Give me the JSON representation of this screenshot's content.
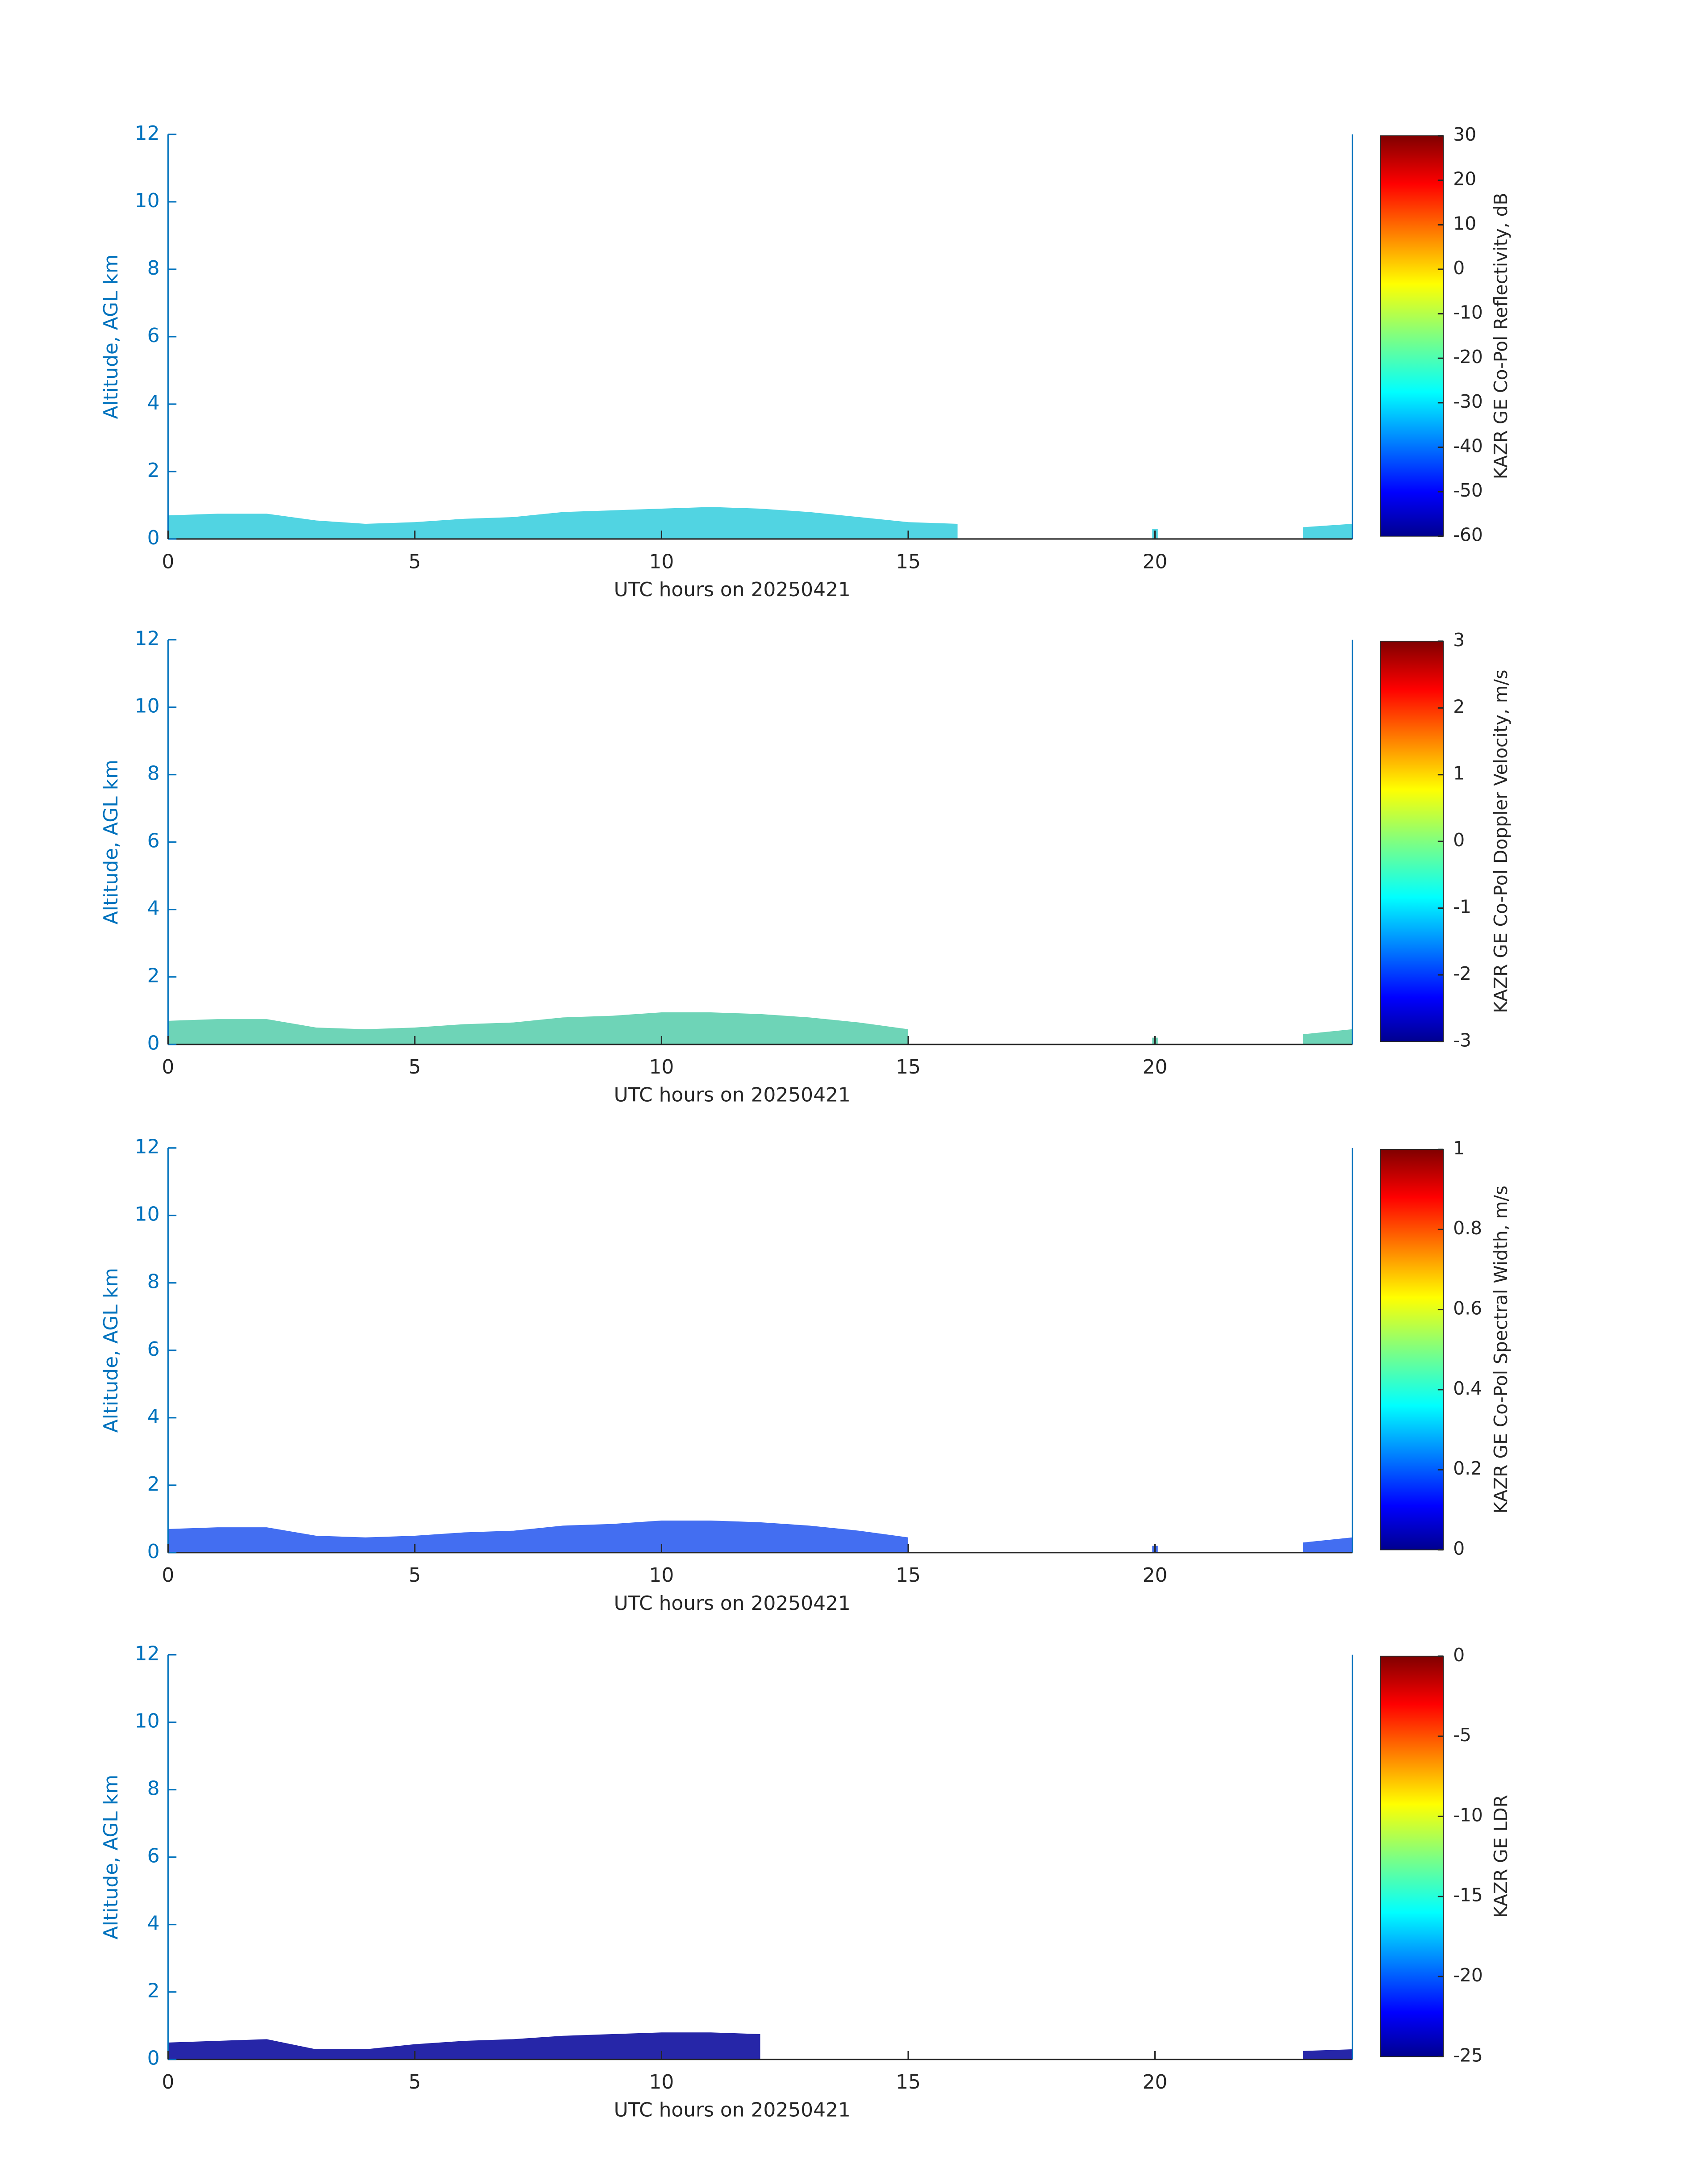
{
  "chart_data": [
    {
      "type": "heatmap",
      "xlabel": "UTC hours on 20250421",
      "ylabel": "Altitude, AGL km",
      "clabel": "KAZR GE Co-Pol Reflectivity, dB",
      "xlim": [
        0,
        24
      ],
      "xticks": [
        0,
        5,
        10,
        15,
        20
      ],
      "ylim": [
        0,
        12
      ],
      "yticks": [
        0,
        2,
        4,
        6,
        8,
        10,
        12
      ],
      "clim": [
        -60,
        30
      ],
      "cticks": [
        -60,
        -50,
        -40,
        -30,
        -20,
        -10,
        0,
        10,
        20,
        30
      ],
      "colormap": "jet",
      "x": [
        0,
        1,
        2,
        3,
        4,
        5,
        6,
        7,
        8,
        9,
        10,
        11,
        12,
        13,
        14,
        15,
        16,
        17,
        18,
        19,
        20,
        21,
        22,
        23,
        24
      ],
      "values": [
        0.7,
        0.75,
        0.75,
        0.55,
        0.45,
        0.5,
        0.6,
        0.65,
        0.8,
        0.85,
        0.9,
        0.95,
        0.9,
        0.8,
        0.65,
        0.5,
        0.45,
        null,
        null,
        null,
        0.3,
        null,
        null,
        0.35,
        0.45
      ],
      "color": "#33ccdd"
    },
    {
      "type": "heatmap",
      "xlabel": "UTC hours on 20250421",
      "ylabel": "Altitude, AGL km",
      "clabel": "KAZR GE Co-Pol Doppler Velocity, m/s",
      "xlim": [
        0,
        24
      ],
      "xticks": [
        0,
        5,
        10,
        15,
        20
      ],
      "ylim": [
        0,
        12
      ],
      "yticks": [
        0,
        2,
        4,
        6,
        8,
        10,
        12
      ],
      "clim": [
        -3,
        3
      ],
      "cticks": [
        -3,
        -2,
        -1,
        0,
        1,
        2,
        3
      ],
      "colormap": "jet",
      "x": [
        0,
        1,
        2,
        3,
        4,
        5,
        6,
        7,
        8,
        9,
        10,
        11,
        12,
        13,
        14,
        15,
        16,
        17,
        18,
        19,
        20,
        21,
        22,
        23,
        24
      ],
      "values": [
        0.7,
        0.75,
        0.75,
        0.5,
        0.45,
        0.5,
        0.6,
        0.65,
        0.8,
        0.85,
        0.95,
        0.95,
        0.9,
        0.8,
        0.65,
        0.45,
        null,
        null,
        null,
        null,
        0.2,
        null,
        null,
        0.3,
        0.45
      ],
      "color": "#55ccaa"
    },
    {
      "type": "heatmap",
      "xlabel": "UTC hours on 20250421",
      "ylabel": "Altitude, AGL km",
      "clabel": "KAZR GE Co-Pol Spectral Width, m/s",
      "xlim": [
        0,
        24
      ],
      "xticks": [
        0,
        5,
        10,
        15,
        20
      ],
      "ylim": [
        0,
        12
      ],
      "yticks": [
        0,
        2,
        4,
        6,
        8,
        10,
        12
      ],
      "clim": [
        0,
        1
      ],
      "cticks": [
        0,
        0.2,
        0.4,
        0.6,
        0.8,
        1
      ],
      "colormap": "jet",
      "x": [
        0,
        1,
        2,
        3,
        4,
        5,
        6,
        7,
        8,
        9,
        10,
        11,
        12,
        13,
        14,
        15,
        16,
        17,
        18,
        19,
        20,
        21,
        22,
        23,
        24
      ],
      "values": [
        0.7,
        0.75,
        0.75,
        0.5,
        0.45,
        0.5,
        0.6,
        0.65,
        0.8,
        0.85,
        0.95,
        0.95,
        0.9,
        0.8,
        0.65,
        0.45,
        null,
        null,
        null,
        null,
        0.2,
        null,
        null,
        0.3,
        0.45
      ],
      "color": "#2255ee"
    },
    {
      "type": "heatmap",
      "xlabel": "UTC hours on 20250421",
      "ylabel": "Altitude, AGL km",
      "clabel": "KAZR GE LDR",
      "xlim": [
        0,
        24
      ],
      "xticks": [
        0,
        5,
        10,
        15,
        20
      ],
      "ylim": [
        0,
        12
      ],
      "yticks": [
        0,
        2,
        4,
        6,
        8,
        10,
        12
      ],
      "clim": [
        -25,
        0
      ],
      "cticks": [
        -25,
        -20,
        -15,
        -10,
        -5,
        0
      ],
      "colormap": "jet",
      "x": [
        0,
        1,
        2,
        3,
        4,
        5,
        6,
        7,
        8,
        9,
        10,
        11,
        12,
        13,
        14,
        15,
        16,
        17,
        18,
        19,
        20,
        21,
        22,
        23,
        24
      ],
      "values": [
        0.5,
        0.55,
        0.6,
        0.3,
        0.3,
        0.45,
        0.55,
        0.6,
        0.7,
        0.75,
        0.8,
        0.8,
        0.75,
        null,
        null,
        null,
        null,
        null,
        null,
        null,
        null,
        null,
        null,
        0.25,
        0.3
      ],
      "color": "#000099"
    }
  ]
}
